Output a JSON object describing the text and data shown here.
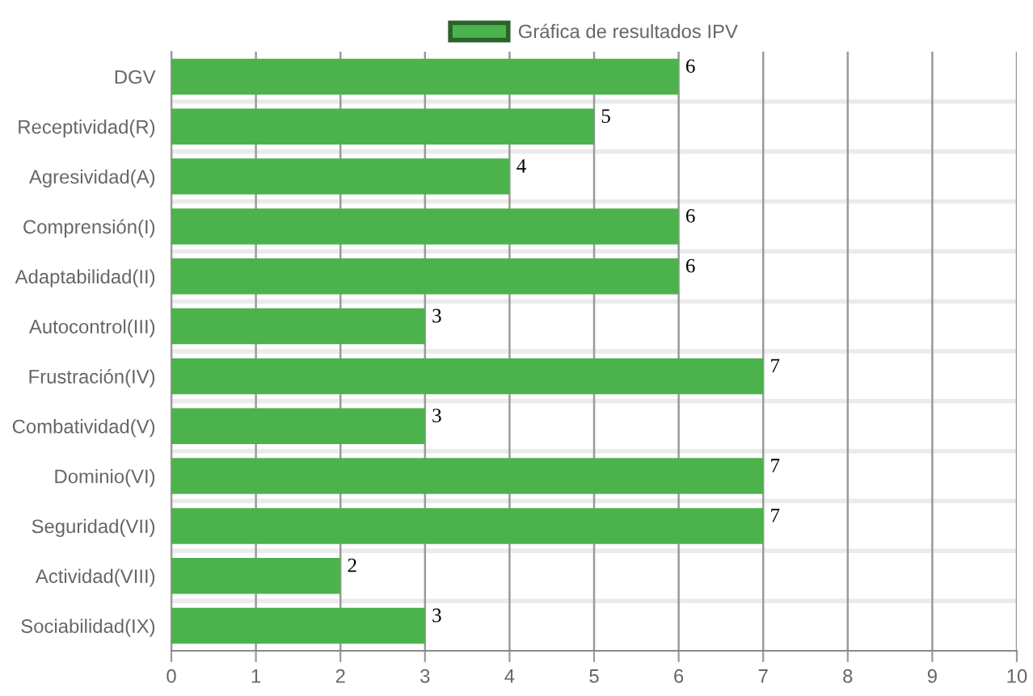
{
  "chart_data": {
    "type": "bar",
    "orientation": "horizontal",
    "categories": [
      "DGV",
      "Receptividad(R)",
      "Agresividad(A)",
      "Comprensión(I)",
      "Adaptabilidad(II)",
      "Autocontrol(III)",
      "Frustración(IV)",
      "Combatividad(V)",
      "Dominio(VI)",
      "Seguridad(VII)",
      "Actividad(VIII)",
      "Sociabilidad(IX)"
    ],
    "series": [
      {
        "name": "Gráfica de resultados IPV",
        "color": "#4cb34c",
        "values": [
          6,
          5,
          4,
          6,
          6,
          3,
          7,
          3,
          7,
          7,
          2,
          3
        ]
      }
    ],
    "xlim": [
      0,
      10
    ],
    "xticks": [
      0,
      1,
      2,
      3,
      4,
      5,
      6,
      7,
      8,
      9,
      10
    ],
    "grid": true,
    "legend": "top",
    "data_labels": true
  }
}
